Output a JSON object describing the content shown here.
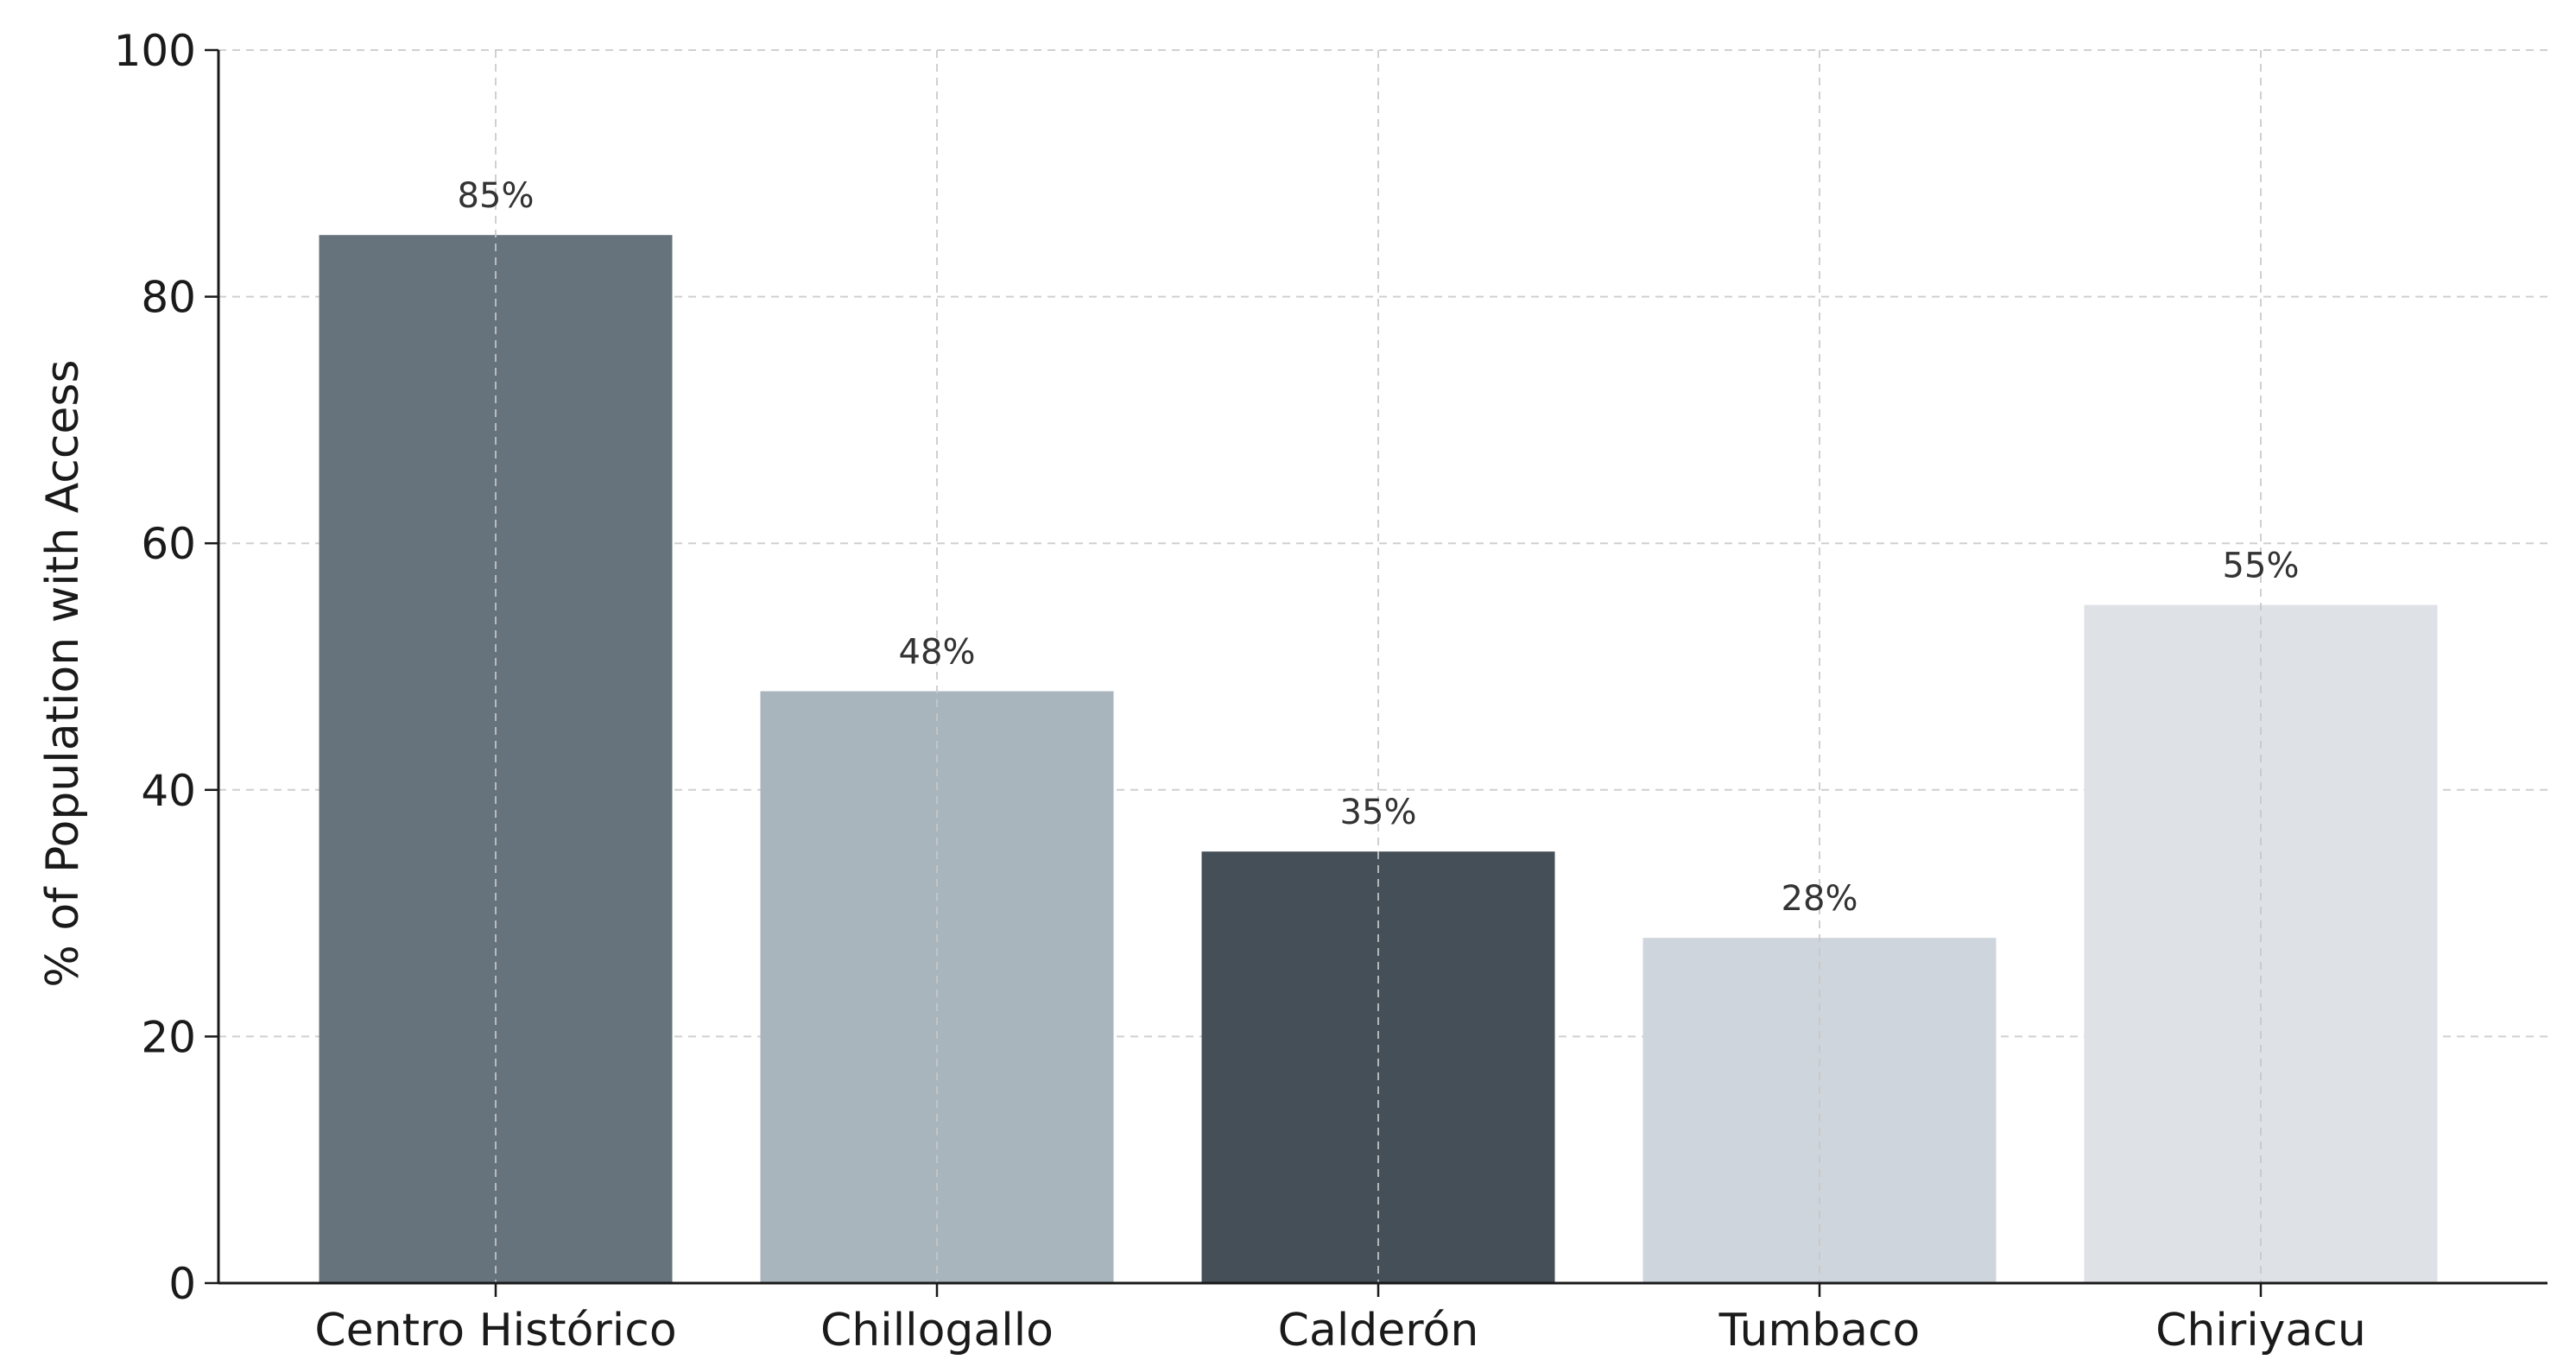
{
  "chart_data": {
    "type": "bar",
    "categories": [
      "Centro Histórico",
      "Chillogallo",
      "Calderón",
      "Tumbaco",
      "Chiriyacu"
    ],
    "values": [
      85,
      48,
      35,
      28,
      55
    ],
    "data_labels": [
      "85%",
      "48%",
      "35%",
      "28%",
      "55%"
    ],
    "bar_colors": [
      "#66737c",
      "#a9b5bc",
      "#444f57",
      "#cfd5dc",
      "#dee1e6"
    ],
    "xlabel": "",
    "ylabel": "% of Population with Access",
    "ylim": [
      0,
      100
    ],
    "yticks": [
      0,
      20,
      40,
      60,
      80,
      100
    ],
    "ytick_labels": [
      "0",
      "20",
      "40",
      "60",
      "80",
      "100"
    ],
    "grid": true,
    "legend": "none"
  }
}
